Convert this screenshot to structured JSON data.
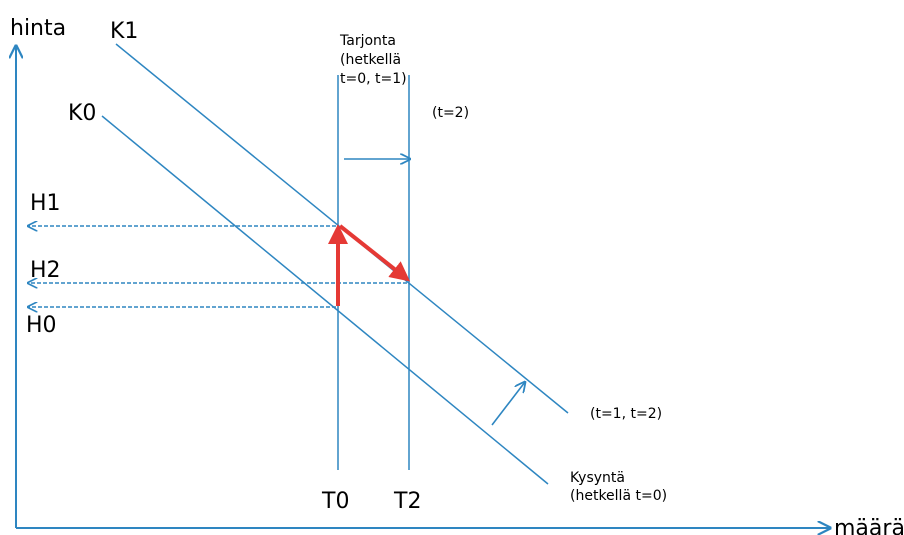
{
  "axes": {
    "y_label": "hinta",
    "x_label": "määrä"
  },
  "demand_curves": {
    "k1_label": "K1",
    "k0_label": "K0",
    "k1_note": "(t=1, t=2)",
    "k0_note_line1": "Kysyntä",
    "k0_note_line2": "(hetkellä t=0)"
  },
  "supply_lines": {
    "note_line1": "Tarjonta",
    "note_line2": "(hetkellä",
    "note_line3": "t=0, t=1)",
    "t2_note": "(t=2)",
    "t0_label": "T0",
    "t2_label": "T2"
  },
  "price_levels": {
    "h1_label": "H1",
    "h2_label": "H2",
    "h0_label": "H0"
  },
  "colors": {
    "line": "#2e86c1",
    "path": "#e53935",
    "text": "#000000"
  }
}
